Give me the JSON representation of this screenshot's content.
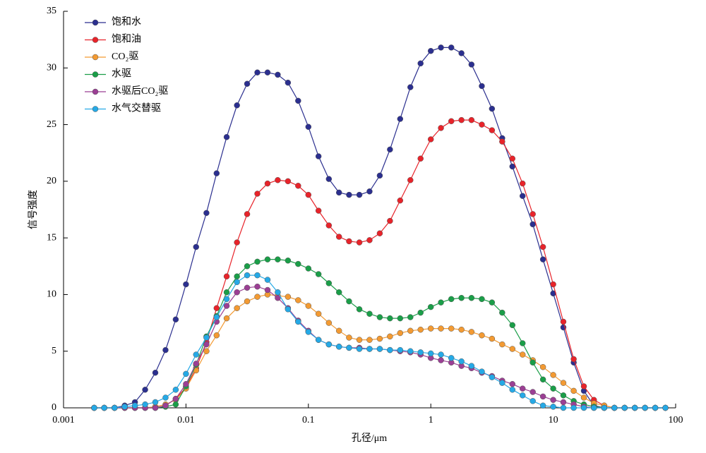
{
  "chart_data": {
    "type": "line",
    "xscale": "log",
    "xlabel": "孔径/μm",
    "ylabel": "信号强度",
    "x": [
      0.00178,
      0.00215,
      0.00261,
      0.00316,
      0.00383,
      0.00464,
      0.00562,
      0.00681,
      0.00825,
      0.01,
      0.0121,
      0.0147,
      0.0178,
      0.0215,
      0.0261,
      0.0316,
      0.0383,
      0.0464,
      0.0562,
      0.0681,
      0.0825,
      0.1,
      0.121,
      0.147,
      0.178,
      0.215,
      0.261,
      0.316,
      0.383,
      0.464,
      0.562,
      0.681,
      0.825,
      1,
      1.21,
      1.47,
      1.78,
      2.15,
      2.61,
      3.16,
      3.83,
      4.64,
      5.62,
      6.81,
      8.25,
      10,
      12.1,
      14.7,
      17.8,
      21.5,
      26.1,
      31.6,
      38.3,
      46.4,
      56.2,
      68.1,
      82.5
    ],
    "series": [
      {
        "name": "饱和水",
        "color": "#2b2f8f",
        "values": [
          0,
          0,
          0,
          0.2,
          0.5,
          1.6,
          3.1,
          5.1,
          7.8,
          10.9,
          14.2,
          17.2,
          20.7,
          23.9,
          26.7,
          28.6,
          29.6,
          29.6,
          29.4,
          28.7,
          27.1,
          24.8,
          22.2,
          20.2,
          19.0,
          18.8,
          18.8,
          19.1,
          20.5,
          22.8,
          25.5,
          28.3,
          30.4,
          31.5,
          31.8,
          31.8,
          31.3,
          30.3,
          28.4,
          26.4,
          23.8,
          21.3,
          18.7,
          16.2,
          13.1,
          10.1,
          7.1,
          4.0,
          1.5,
          0.2,
          0,
          0,
          0,
          0,
          0,
          0,
          0
        ]
      },
      {
        "name": "饱和油",
        "color": "#e8232a",
        "values": [
          0,
          0,
          0,
          0,
          0,
          0,
          0,
          0.2,
          0.8,
          1.8,
          3.5,
          5.8,
          8.8,
          11.6,
          14.6,
          17.1,
          18.9,
          19.8,
          20.1,
          20.0,
          19.6,
          18.8,
          17.4,
          16.1,
          15.1,
          14.7,
          14.6,
          14.8,
          15.4,
          16.5,
          18.3,
          20.1,
          22.0,
          23.7,
          24.7,
          25.3,
          25.4,
          25.4,
          25.0,
          24.5,
          23.5,
          22.0,
          19.8,
          17.1,
          14.2,
          10.9,
          7.6,
          4.3,
          1.9,
          0.7,
          0.2,
          0,
          0,
          0,
          0,
          0,
          0
        ]
      },
      {
        "name": "CO₂驱",
        "color": "#f39a32",
        "values": [
          0,
          0,
          0,
          0,
          0,
          0,
          0.1,
          0.3,
          0.7,
          1.7,
          3.3,
          5.0,
          6.4,
          7.9,
          8.8,
          9.4,
          9.8,
          10.0,
          9.9,
          9.8,
          9.5,
          9.0,
          8.3,
          7.5,
          6.8,
          6.2,
          6.0,
          6.0,
          6.1,
          6.3,
          6.6,
          6.8,
          6.9,
          7.0,
          7.0,
          7.0,
          6.9,
          6.7,
          6.4,
          6.1,
          5.6,
          5.2,
          4.7,
          4.2,
          3.6,
          2.9,
          2.2,
          1.5,
          0.9,
          0.4,
          0.2,
          0,
          0,
          0,
          0,
          0,
          0
        ]
      },
      {
        "name": "水驱",
        "color": "#1a9e48",
        "values": [
          0,
          0,
          0,
          0,
          0,
          0,
          0,
          0.1,
          0.3,
          1.9,
          3.8,
          6.3,
          8.1,
          10.2,
          11.6,
          12.5,
          12.9,
          13.1,
          13.1,
          13.0,
          12.7,
          12.3,
          11.8,
          11.0,
          10.2,
          9.4,
          8.7,
          8.3,
          8.0,
          7.9,
          7.9,
          8.0,
          8.4,
          8.9,
          9.3,
          9.6,
          9.7,
          9.7,
          9.6,
          9.3,
          8.4,
          7.3,
          5.7,
          4.0,
          2.5,
          1.7,
          1.1,
          0.6,
          0.3,
          0.1,
          0,
          0,
          0,
          0,
          0,
          0,
          0
        ]
      },
      {
        "name": "水驱后CO₂驱",
        "color": "#9b3f94",
        "values": [
          0,
          0,
          0,
          0,
          0,
          0,
          0,
          0.2,
          0.8,
          2.1,
          3.9,
          5.6,
          7.6,
          9.0,
          10.2,
          10.6,
          10.7,
          10.4,
          9.7,
          8.8,
          7.7,
          6.8,
          6.0,
          5.6,
          5.4,
          5.3,
          5.3,
          5.2,
          5.2,
          5.1,
          5.0,
          4.9,
          4.7,
          4.4,
          4.2,
          4.0,
          3.7,
          3.5,
          3.1,
          2.8,
          2.4,
          2.1,
          1.7,
          1.4,
          1.0,
          0.7,
          0.5,
          0.3,
          0.1,
          0,
          0,
          0,
          0,
          0,
          0,
          0,
          0
        ]
      },
      {
        "name": "水气交替驱",
        "color": "#25a9e6",
        "values": [
          0,
          0,
          0,
          0.1,
          0.2,
          0.3,
          0.5,
          0.9,
          1.6,
          3.0,
          4.7,
          6.2,
          8.0,
          9.6,
          11.1,
          11.7,
          11.7,
          11.3,
          10.2,
          8.7,
          7.6,
          6.7,
          6.0,
          5.6,
          5.4,
          5.3,
          5.2,
          5.2,
          5.2,
          5.1,
          5.1,
          5.0,
          4.9,
          4.8,
          4.7,
          4.4,
          4.1,
          3.7,
          3.2,
          2.7,
          2.2,
          1.6,
          1.1,
          0.6,
          0.2,
          0.1,
          0,
          0,
          0,
          0,
          0,
          0,
          0,
          0,
          0,
          0,
          0
        ]
      }
    ],
    "xlim": [
      0.001,
      100
    ],
    "xticks": [
      0.001,
      0.01,
      0.1,
      1,
      10,
      100
    ],
    "ylim": [
      0,
      35
    ],
    "yticks": [
      0,
      5,
      10,
      15,
      20,
      25,
      30,
      35
    ],
    "legend": "upper left"
  }
}
